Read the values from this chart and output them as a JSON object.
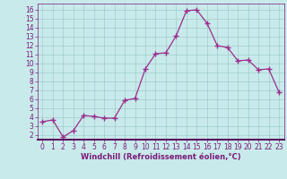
{
  "x": [
    0,
    1,
    2,
    3,
    4,
    5,
    6,
    7,
    8,
    9,
    10,
    11,
    12,
    13,
    14,
    15,
    16,
    17,
    18,
    19,
    20,
    21,
    22,
    23
  ],
  "y": [
    3.5,
    3.7,
    1.8,
    2.5,
    4.2,
    4.1,
    3.9,
    3.9,
    5.9,
    6.1,
    9.4,
    11.1,
    11.2,
    13.1,
    15.9,
    16.0,
    14.5,
    12.0,
    11.8,
    10.3,
    10.4,
    9.3,
    9.4,
    6.8
  ],
  "line_color": "#9b2d8e",
  "marker": "+",
  "marker_size": 4,
  "marker_color": "#9b2d8e",
  "background_color": "#c8eaea",
  "grid_color": "#a0cccc",
  "xlabel": "Windchill (Refroidissement éolien,°C)",
  "axis_label_color": "#7b1a7a",
  "tick_color": "#7b1a7a",
  "ylim": [
    1.5,
    16.7
  ],
  "xlim": [
    -0.5,
    23.5
  ],
  "yticks": [
    2,
    3,
    4,
    5,
    6,
    7,
    8,
    9,
    10,
    11,
    12,
    13,
    14,
    15,
    16
  ],
  "xticks": [
    0,
    1,
    2,
    3,
    4,
    5,
    6,
    7,
    8,
    9,
    10,
    11,
    12,
    13,
    14,
    15,
    16,
    17,
    18,
    19,
    20,
    21,
    22,
    23
  ],
  "spine_bottom_color": "#5a1060",
  "xlabel_fontsize": 6.0,
  "tick_fontsize": 5.5
}
